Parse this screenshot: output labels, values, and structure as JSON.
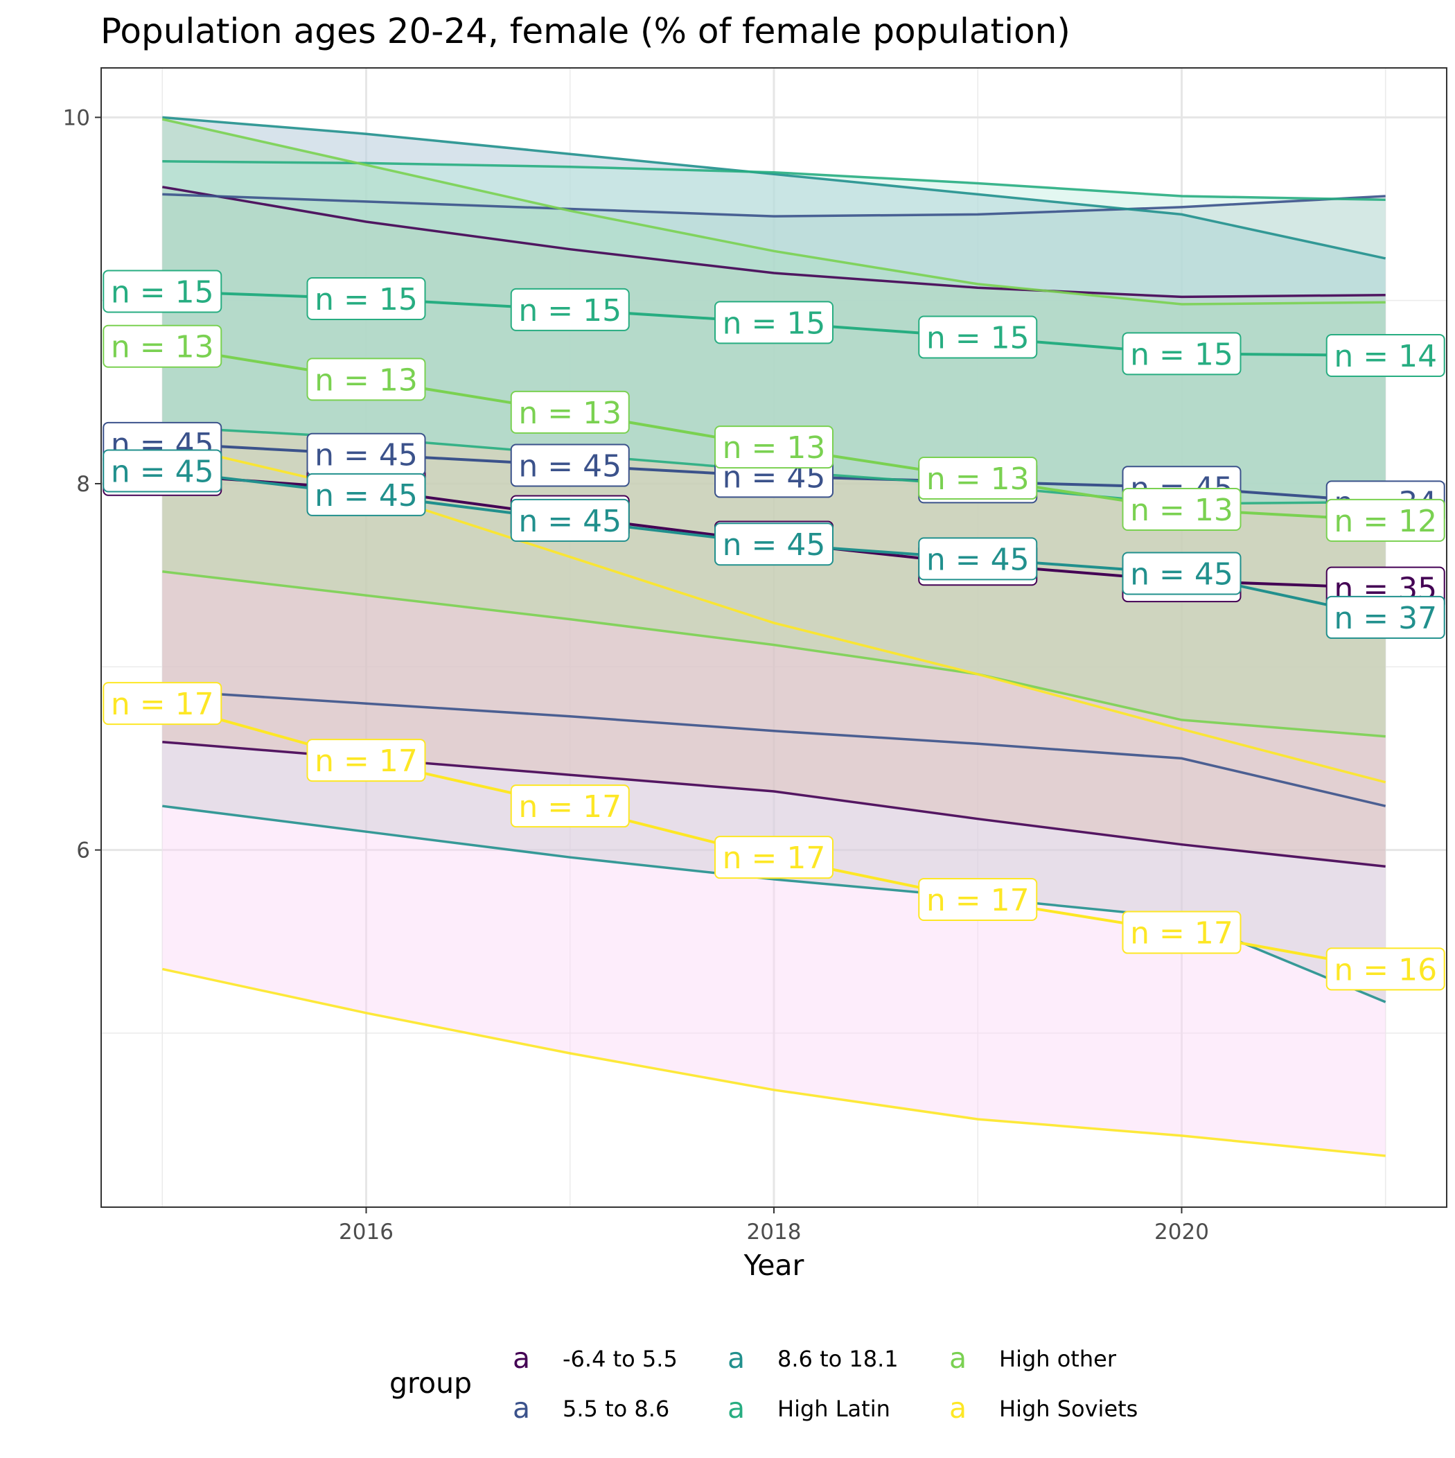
{
  "chart_data": {
    "type": "line",
    "title": "Population ages 20-24, female (% of female population)",
    "xlabel": "Year",
    "ylabel": "",
    "x": [
      2015,
      2016,
      2017,
      2018,
      2019,
      2020,
      2021
    ],
    "x_ticks": [
      2016,
      2018,
      2020
    ],
    "y_ticks": [
      6,
      8,
      10
    ],
    "xlim": [
      2014.7,
      2021.3
    ],
    "ylim": [
      4.05,
      10.27
    ],
    "grid": true,
    "legend": {
      "title": "group",
      "position": "bottom",
      "key_glyph": "a"
    },
    "series": [
      {
        "name": "-6.4 to 5.5",
        "color": "#440154",
        "mean": [
          8.05,
          7.97,
          7.82,
          7.68,
          7.56,
          7.47,
          7.43
        ],
        "upper": [
          9.62,
          9.43,
          9.28,
          9.15,
          9.07,
          9.02,
          9.03
        ],
        "lower": [
          6.59,
          6.5,
          6.41,
          6.32,
          6.17,
          6.03,
          5.91
        ],
        "n": [
          "n = 45",
          "n = 45",
          "n = 45",
          "n = 45",
          "n = 45",
          "n = 45",
          "n = 35"
        ]
      },
      {
        "name": "5.5 to 8.6",
        "color": "#3b528b",
        "mean": [
          8.22,
          8.16,
          8.1,
          8.04,
          8.01,
          7.98,
          7.9
        ],
        "upper": [
          9.58,
          9.54,
          9.5,
          9.46,
          9.47,
          9.51,
          9.57
        ],
        "lower": [
          6.87,
          6.8,
          6.73,
          6.65,
          6.58,
          6.5,
          6.24
        ],
        "n": [
          "n = 45",
          "n = 45",
          "n = 45",
          "n = 45",
          "n = 45",
          "n = 45",
          "n = 34"
        ]
      },
      {
        "name": "8.6 to 18.1",
        "color": "#21908d",
        "mean": [
          8.07,
          7.94,
          7.8,
          7.67,
          7.59,
          7.51,
          7.27
        ],
        "upper": [
          10.0,
          9.91,
          9.8,
          9.69,
          9.58,
          9.47,
          9.23
        ],
        "lower": [
          6.24,
          6.1,
          5.96,
          5.84,
          5.74,
          5.63,
          5.17
        ],
        "n": [
          "n = 45",
          "n = 45",
          "n = 45",
          "n = 45",
          "n = 45",
          "n = 45",
          "n = 37"
        ]
      },
      {
        "name": "High Latin",
        "color": "#27ad81",
        "mean": [
          9.05,
          9.01,
          8.95,
          8.88,
          8.8,
          8.71,
          8.7
        ],
        "upper": [
          9.76,
          9.75,
          9.73,
          9.7,
          9.64,
          9.57,
          9.55
        ],
        "lower": [
          8.31,
          8.25,
          8.16,
          8.07,
          7.99,
          7.89,
          7.9
        ],
        "n": [
          "n = 15",
          "n = 15",
          "n = 15",
          "n = 15",
          "n = 15",
          "n = 15",
          "n = 14"
        ]
      },
      {
        "name": "High other",
        "color": "#7ad151",
        "mean": [
          8.75,
          8.57,
          8.39,
          8.2,
          8.03,
          7.86,
          7.8
        ],
        "upper": [
          9.99,
          9.74,
          9.49,
          9.27,
          9.09,
          8.98,
          8.99
        ],
        "lower": [
          7.52,
          7.39,
          7.26,
          7.12,
          6.96,
          6.71,
          6.62
        ],
        "n": [
          "n = 13",
          "n = 13",
          "n = 13",
          "n = 13",
          "n = 13",
          "n = 13",
          "n = 12"
        ]
      },
      {
        "name": "High Soviets",
        "color": "#fde725",
        "mean": [
          6.8,
          6.49,
          6.24,
          5.96,
          5.73,
          5.55,
          5.35
        ],
        "upper": [
          8.22,
          7.96,
          7.6,
          7.24,
          6.96,
          6.66,
          6.37
        ],
        "lower": [
          5.35,
          5.11,
          4.89,
          4.69,
          4.53,
          4.44,
          4.33
        ],
        "n": [
          "n = 17",
          "n = 17",
          "n = 17",
          "n = 17",
          "n = 17",
          "n = 17",
          "n = 16"
        ]
      }
    ],
    "bands": [
      {
        "series": "High Soviets",
        "fill": "#fbd8f6",
        "opacity": 0.45,
        "lower_of": "High Soviets",
        "upper_of": "8.6 to 18.1"
      },
      {
        "series": "-6.4 to 5.5",
        "fill": "#c6c9cf",
        "opacity": 0.4,
        "lower_of": "8.6 to 18.1",
        "upper_of": "5.5 to 8.6"
      },
      {
        "series": "5.5 to 8.6",
        "fill": "#d9b8a8",
        "opacity": 0.35,
        "lower_of": "-6.4 to 5.5",
        "upper_of": "-6.4 to 5.5"
      },
      {
        "series": "High other",
        "fill": "#b9dba9",
        "opacity": 0.45,
        "lower_of": "High other",
        "upper_of": "High other"
      },
      {
        "series": "8.6 to 18.1",
        "fill": "#8fd2cf",
        "opacity": 0.35,
        "lower_of": "High Latin",
        "upper_of": "8.6 to 18.1"
      },
      {
        "series": "High Latin",
        "fill": "#aee8d6",
        "opacity": 0.35,
        "lower_of": "High Latin",
        "upper_of": "High Latin"
      }
    ]
  }
}
